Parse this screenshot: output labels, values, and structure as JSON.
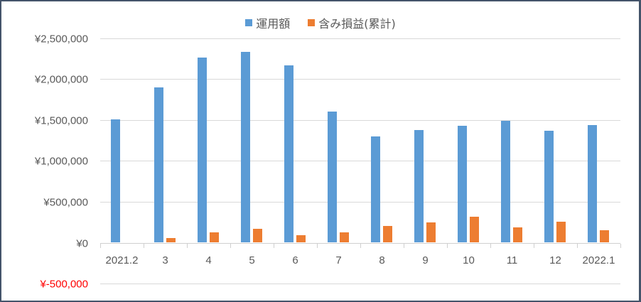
{
  "chart_data": {
    "type": "bar",
    "title": "",
    "xlabel": "",
    "ylabel": "",
    "categories": [
      "2021.2",
      "3",
      "4",
      "5",
      "6",
      "7",
      "8",
      "9",
      "10",
      "11",
      "12",
      "2022.1"
    ],
    "series": [
      {
        "name": "運用額",
        "color": "#5b9bd5",
        "values": [
          1510000,
          1900000,
          2260000,
          2330000,
          2170000,
          1600000,
          1300000,
          1380000,
          1430000,
          1490000,
          1370000,
          1440000
        ]
      },
      {
        "name": "含み損益(累計)",
        "color": "#ed7d31",
        "values": [
          -10000,
          55000,
          130000,
          165000,
          95000,
          130000,
          200000,
          250000,
          315000,
          190000,
          260000,
          155000
        ]
      }
    ],
    "ylim": [
      -500000,
      2500000
    ],
    "yticks": [
      {
        "value": 2500000,
        "label": "¥2,500,000"
      },
      {
        "value": 2000000,
        "label": "¥2,000,000"
      },
      {
        "value": 1500000,
        "label": "¥1,500,000"
      },
      {
        "value": 1000000,
        "label": "¥1,000,000"
      },
      {
        "value": 500000,
        "label": "¥500,000"
      },
      {
        "value": 0,
        "label": "¥0"
      },
      {
        "value": -500000,
        "label": "¥-500,000",
        "color": "#ff0000"
      }
    ],
    "grid": true,
    "legend_position": "top"
  },
  "legend": {
    "items": [
      {
        "label": "運用額",
        "color": "#5b9bd5"
      },
      {
        "label": "含み損益(累計)",
        "color": "#ed7d31"
      }
    ]
  }
}
